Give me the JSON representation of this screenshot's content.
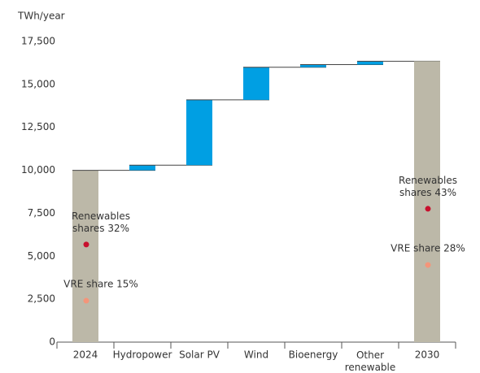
{
  "chart_data": {
    "type": "waterfall",
    "y_label": "TWh/year",
    "categories": [
      "2024",
      "Hydropower",
      "Solar PV",
      "Wind",
      "Bioenergy",
      "Other\nrenewable",
      "2030"
    ],
    "values": [
      10000,
      300,
      3800,
      1900,
      150,
      200,
      16350
    ],
    "measure": [
      "total",
      "relative",
      "relative",
      "relative",
      "relative",
      "relative",
      "total"
    ],
    "total_color": "#bcb8a8",
    "delta_color": "#009fe3",
    "series": [
      {
        "color": "#c8102e",
        "values": [
          5680,
          null,
          null,
          null,
          null,
          null,
          7760
        ],
        "value_labels": [
          "Renewables\nshares 32%",
          null,
          null,
          null,
          null,
          null,
          "Renewables\nshares 43%"
        ]
      },
      {
        "color": "#f4957a",
        "values": [
          2410,
          null,
          null,
          null,
          null,
          null,
          4490
        ],
        "value_labels": [
          "VRE share 15%",
          null,
          null,
          null,
          null,
          null,
          "VRE share 28%"
        ]
      }
    ],
    "ylim": [
      0,
      17500
    ],
    "yticks": [
      0,
      {
        "value": 2500,
        "label": "2,500"
      },
      {
        "value": 5000,
        "label": "5,000"
      },
      {
        "value": 7500,
        "label": "7,500"
      },
      {
        "value": 10000,
        "label": "10,000"
      },
      {
        "value": 12500,
        "label": "12,500"
      },
      {
        "value": 15000,
        "label": "15,000"
      },
      {
        "value": 17500,
        "label": "17,500"
      }
    ]
  }
}
